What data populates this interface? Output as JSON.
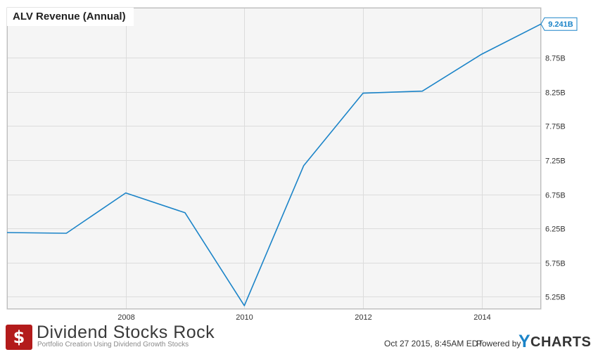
{
  "chart_data": {
    "type": "line",
    "title": "ALV Revenue (Annual)",
    "x": [
      2006,
      2007,
      2008,
      2009,
      2010,
      2011,
      2012,
      2013,
      2014,
      2015
    ],
    "series": [
      {
        "values": [
          6.19,
          6.18,
          6.77,
          6.48,
          5.12,
          7.17,
          8.23,
          8.26,
          8.8,
          9.241
        ],
        "color": "#1b84c8"
      }
    ],
    "x_ticks": [
      "2008",
      "2010",
      "2012",
      "2014"
    ],
    "y_ticks": [
      "5.25B",
      "5.75B",
      "6.25B",
      "6.75B",
      "7.25B",
      "7.75B",
      "8.25B",
      "8.75B"
    ],
    "ylim": [
      5.07,
      9.48
    ],
    "xlim": [
      2006,
      2015
    ],
    "last_value_label": "9.241B",
    "grid": true,
    "plot_background": "#f5f5f5",
    "grid_color": "#dcdcdc"
  },
  "footer": {
    "logo_symbol": "$",
    "brand": "Dividend Stocks Rock",
    "tagline": "Portfolio Creation Using Dividend Growth Stocks",
    "timestamp": "Oct 27 2015, 8:45AM EDT.",
    "powered_by": "Powered by",
    "ycharts_y": "Y",
    "ycharts_rest": "CHARTS"
  },
  "colors": {
    "brand_red": "#b31b1b",
    "ycharts_blue": "#1b84c8"
  }
}
